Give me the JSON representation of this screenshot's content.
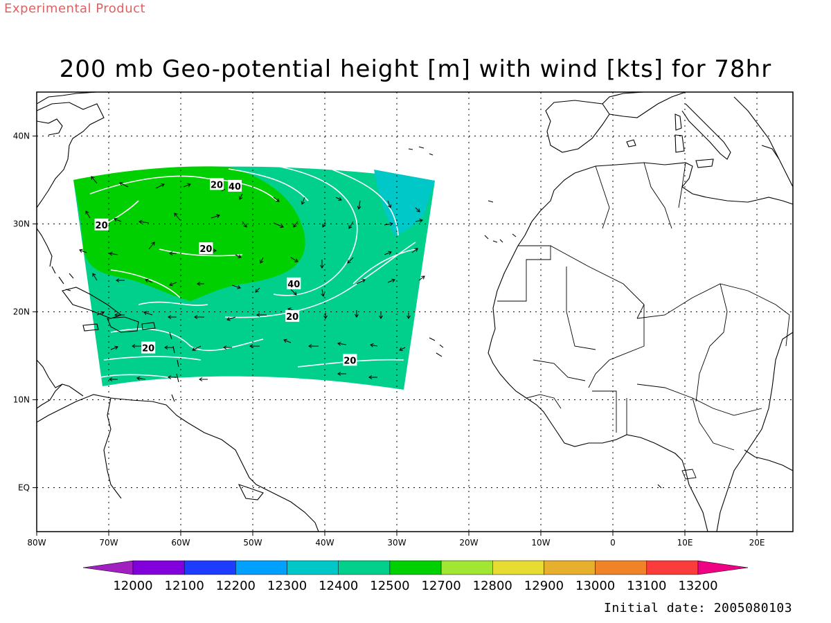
{
  "header": {
    "experimental_label": "Experimental Product",
    "title": "200 mb Geo-potential height [m] with wind [kts] for 78hr",
    "initial_date": "Initial date: 2005080103"
  },
  "map": {
    "lon_range": [
      -80,
      25
    ],
    "lat_range": [
      -5,
      45
    ],
    "lon_labels": [
      {
        "lon": -80,
        "label": "80W"
      },
      {
        "lon": -70,
        "label": "70W"
      },
      {
        "lon": -60,
        "label": "60W"
      },
      {
        "lon": -50,
        "label": "50W"
      },
      {
        "lon": -40,
        "label": "40W"
      },
      {
        "lon": -30,
        "label": "30W"
      },
      {
        "lon": -20,
        "label": "20W"
      },
      {
        "lon": -10,
        "label": "10W"
      },
      {
        "lon": 0,
        "label": "0"
      },
      {
        "lon": 10,
        "label": "10E"
      },
      {
        "lon": 20,
        "label": "20E"
      }
    ],
    "lat_labels": [
      {
        "lat": 40,
        "label": "40N"
      },
      {
        "lat": 30,
        "label": "30N"
      },
      {
        "lat": 20,
        "label": "20N"
      },
      {
        "lat": 10,
        "label": "10N"
      },
      {
        "lat": 0,
        "label": "EQ"
      }
    ],
    "contour_labels": [
      {
        "text": "20",
        "lon": -55,
        "lat": 34.5
      },
      {
        "text": "40",
        "lon": -52.5,
        "lat": 34.3
      },
      {
        "text": "20",
        "lon": -71,
        "lat": 29.9
      },
      {
        "text": "20",
        "lon": -56.5,
        "lat": 27.2
      },
      {
        "text": "40",
        "lon": -44.3,
        "lat": 23.2
      },
      {
        "text": "20",
        "lon": -44.5,
        "lat": 19.5
      },
      {
        "text": "20",
        "lon": -64.5,
        "lat": 15.9
      },
      {
        "text": "20",
        "lon": -36.5,
        "lat": 14.5
      }
    ],
    "fill_colors": {
      "level_12400_12500": "#00d08c",
      "level_12500_12700": "#00d000",
      "level_12300_12400": "#00c8c8"
    }
  },
  "colorbar": {
    "labels": [
      "12000",
      "12100",
      "12200",
      "12300",
      "12400",
      "12500",
      "12700",
      "12800",
      "12900",
      "13000",
      "13100",
      "13200"
    ],
    "colors": [
      "#a020c0",
      "#8200dc",
      "#1e3cff",
      "#00a0ff",
      "#00c8c8",
      "#00d08c",
      "#00d000",
      "#a0e632",
      "#e6dc32",
      "#e6af2d",
      "#f08228",
      "#fa3c3c",
      "#f00082"
    ]
  }
}
